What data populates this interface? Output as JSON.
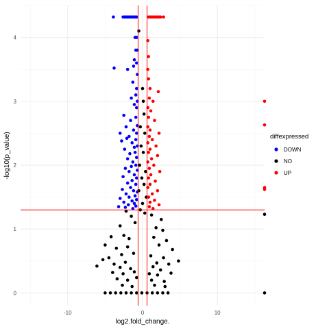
{
  "chart_data": {
    "type": "scatter",
    "title": "",
    "xlabel": "log2.fold_change.",
    "ylabel": "-log10(p_value)",
    "xlim": [
      -16.3,
      16.3
    ],
    "ylim": [
      -0.2,
      4.5
    ],
    "x_ticks": [
      -10,
      0,
      10
    ],
    "y_ticks": [
      0,
      1,
      2,
      3,
      4
    ],
    "grid": true,
    "thresholds": {
      "vlines": [
        -0.6,
        0.6
      ],
      "hline": 1.3,
      "color": "#ff0000"
    },
    "legend": {
      "title": "diffexpressed",
      "position": "right",
      "entries": [
        {
          "label": "DOWN",
          "color": "#0000ff"
        },
        {
          "label": "NO",
          "color": "#000000"
        },
        {
          "label": "UP",
          "color": "#ff0000"
        }
      ]
    },
    "series": [
      {
        "name": "DOWN",
        "color": "#0000ff",
        "points": [
          [
            -3.9,
            4.32
          ],
          [
            -2.6,
            4.32
          ],
          [
            -2.4,
            4.32
          ],
          [
            -2.2,
            4.32
          ],
          [
            -2.0,
            4.32
          ],
          [
            -1.8,
            4.32
          ],
          [
            -1.6,
            4.32
          ],
          [
            -1.4,
            4.32
          ],
          [
            -1.2,
            4.32
          ],
          [
            -1.0,
            4.32
          ],
          [
            -0.8,
            4.32
          ],
          [
            -0.8,
            4.0
          ],
          [
            -1.0,
            4.0
          ],
          [
            -0.7,
            3.8
          ],
          [
            -0.9,
            3.8
          ],
          [
            -1.1,
            3.65
          ],
          [
            -0.8,
            3.6
          ],
          [
            -1.2,
            3.55
          ],
          [
            -3.8,
            3.52
          ],
          [
            -2.0,
            3.5
          ],
          [
            -0.7,
            3.42
          ],
          [
            -1.3,
            3.3
          ],
          [
            -0.8,
            3.2
          ],
          [
            -0.9,
            3.1
          ],
          [
            -1.5,
            3.05
          ],
          [
            -0.7,
            3.0
          ],
          [
            -1.1,
            2.95
          ],
          [
            -0.8,
            2.9
          ],
          [
            -2.5,
            2.78
          ],
          [
            -0.9,
            2.75
          ],
          [
            -1.6,
            2.7
          ],
          [
            -0.7,
            2.62
          ],
          [
            -2.2,
            2.6
          ],
          [
            -1.2,
            2.55
          ],
          [
            -3.0,
            2.5
          ],
          [
            -0.8,
            2.5
          ],
          [
            -1.8,
            2.45
          ],
          [
            -2.1,
            2.42
          ],
          [
            -0.9,
            2.4
          ],
          [
            -2.8,
            2.38
          ],
          [
            -1.4,
            2.35
          ],
          [
            -0.7,
            2.3
          ],
          [
            -1.1,
            2.28
          ],
          [
            -2.4,
            2.25
          ],
          [
            -1.0,
            2.2
          ],
          [
            -1.7,
            2.18
          ],
          [
            -0.8,
            2.12
          ],
          [
            -2.0,
            2.1
          ],
          [
            -1.3,
            2.05
          ],
          [
            -0.9,
            2.0
          ],
          [
            -1.5,
            1.98
          ],
          [
            -2.3,
            1.95
          ],
          [
            -0.7,
            1.92
          ],
          [
            -1.8,
            1.9
          ],
          [
            -1.1,
            1.85
          ],
          [
            -2.6,
            1.82
          ],
          [
            -0.8,
            1.8
          ],
          [
            -1.4,
            1.76
          ],
          [
            -2.0,
            1.72
          ],
          [
            -0.9,
            1.7
          ],
          [
            -1.6,
            1.65
          ],
          [
            -2.7,
            1.62
          ],
          [
            -1.2,
            1.6
          ],
          [
            -0.7,
            1.58
          ],
          [
            -2.2,
            1.55
          ],
          [
            -1.0,
            1.52
          ],
          [
            -1.8,
            1.5
          ],
          [
            -3.0,
            1.48
          ],
          [
            -0.8,
            1.46
          ],
          [
            -1.4,
            1.44
          ],
          [
            -2.5,
            1.42
          ],
          [
            -1.1,
            1.4
          ],
          [
            -1.9,
            1.38
          ],
          [
            -0.9,
            1.36
          ],
          [
            -2.3,
            1.34
          ],
          [
            -1.3,
            1.32
          ],
          [
            -3.2,
            1.35
          ]
        ]
      },
      {
        "name": "NO",
        "color": "#000000",
        "points": [
          [
            -0.5,
            4.1
          ],
          [
            0.0,
            3.2
          ],
          [
            0.1,
            3.0
          ],
          [
            0.2,
            2.8
          ],
          [
            -0.3,
            2.6
          ],
          [
            0.3,
            2.5
          ],
          [
            -0.2,
            2.3
          ],
          [
            0.1,
            2.2
          ],
          [
            -0.4,
            2.0
          ],
          [
            0.4,
            1.9
          ],
          [
            -0.1,
            1.8
          ],
          [
            0.2,
            1.7
          ],
          [
            -0.5,
            1.6
          ],
          [
            0.5,
            1.5
          ],
          [
            0.0,
            1.4
          ],
          [
            -0.3,
            1.3
          ],
          [
            0.3,
            1.25
          ],
          [
            -2.2,
            1.28
          ],
          [
            -1.5,
            1.2
          ],
          [
            1.2,
            1.22
          ],
          [
            2.5,
            1.15
          ],
          [
            -3.0,
            1.05
          ],
          [
            -1.0,
            1.1
          ],
          [
            1.8,
            1.02
          ],
          [
            2.7,
            0.98
          ],
          [
            -2.5,
            0.9
          ],
          [
            -4.2,
            0.88
          ],
          [
            -1.8,
            0.85
          ],
          [
            1.5,
            0.87
          ],
          [
            3.2,
            0.82
          ],
          [
            -5.0,
            0.75
          ],
          [
            -3.5,
            0.7
          ],
          [
            -2.0,
            0.72
          ],
          [
            2.2,
            0.75
          ],
          [
            4.0,
            0.68
          ],
          [
            -4.5,
            0.55
          ],
          [
            -2.8,
            0.6
          ],
          [
            -1.2,
            0.62
          ],
          [
            1.1,
            0.58
          ],
          [
            2.8,
            0.55
          ],
          [
            -5.3,
            0.52
          ],
          [
            -3.8,
            0.45
          ],
          [
            -2.3,
            0.48
          ],
          [
            1.9,
            0.47
          ],
          [
            3.5,
            0.45
          ],
          [
            4.8,
            0.5
          ],
          [
            -6.1,
            0.42
          ],
          [
            -3.0,
            0.4
          ],
          [
            -1.6,
            0.38
          ],
          [
            1.4,
            0.41
          ],
          [
            2.4,
            0.36
          ],
          [
            -4.0,
            0.32
          ],
          [
            -2.6,
            0.3
          ],
          [
            -1.1,
            0.33
          ],
          [
            0.9,
            0.3
          ],
          [
            2.0,
            0.28
          ],
          [
            3.8,
            0.31
          ],
          [
            -3.4,
            0.22
          ],
          [
            -2.0,
            0.2
          ],
          [
            -0.8,
            0.24
          ],
          [
            1.2,
            0.2
          ],
          [
            2.9,
            0.18
          ],
          [
            -2.7,
            0.12
          ],
          [
            -1.4,
            0.1
          ],
          [
            1.6,
            0.12
          ],
          [
            3.0,
            0.1
          ],
          [
            -5.0,
            0.0
          ],
          [
            -4.3,
            0.0
          ],
          [
            -3.6,
            0.0
          ],
          [
            -2.9,
            0.0
          ],
          [
            -2.2,
            0.0
          ],
          [
            -1.5,
            0.0
          ],
          [
            -0.8,
            0.0
          ],
          [
            -0.1,
            0.0
          ],
          [
            0.6,
            0.0
          ],
          [
            1.3,
            0.0
          ],
          [
            2.0,
            0.0
          ],
          [
            2.7,
            0.0
          ],
          [
            3.4,
            0.0
          ],
          [
            16.3,
            1.23
          ],
          [
            16.3,
            0.0
          ]
        ]
      },
      {
        "name": "UP",
        "color": "#ff0000",
        "points": [
          [
            0.8,
            4.32
          ],
          [
            1.0,
            4.32
          ],
          [
            1.2,
            4.32
          ],
          [
            1.4,
            4.32
          ],
          [
            1.6,
            4.32
          ],
          [
            1.8,
            4.32
          ],
          [
            2.0,
            4.32
          ],
          [
            2.2,
            4.32
          ],
          [
            2.4,
            4.32
          ],
          [
            2.8,
            4.32
          ],
          [
            0.7,
            3.95
          ],
          [
            0.8,
            3.7
          ],
          [
            0.7,
            3.5
          ],
          [
            0.8,
            3.35
          ],
          [
            1.0,
            3.2
          ],
          [
            2.1,
            3.15
          ],
          [
            0.9,
            3.05
          ],
          [
            1.4,
            3.0
          ],
          [
            0.7,
            2.9
          ],
          [
            1.1,
            2.85
          ],
          [
            0.8,
            2.75
          ],
          [
            1.6,
            2.7
          ],
          [
            0.7,
            2.6
          ],
          [
            1.0,
            2.55
          ],
          [
            2.2,
            2.5
          ],
          [
            0.9,
            2.45
          ],
          [
            1.3,
            2.4
          ],
          [
            0.7,
            2.35
          ],
          [
            1.8,
            2.3
          ],
          [
            1.0,
            2.25
          ],
          [
            0.8,
            2.2
          ],
          [
            2.0,
            2.15
          ],
          [
            1.2,
            2.1
          ],
          [
            0.7,
            2.05
          ],
          [
            1.5,
            2.0
          ],
          [
            0.9,
            1.95
          ],
          [
            2.3,
            1.9
          ],
          [
            1.1,
            1.85
          ],
          [
            0.8,
            1.8
          ],
          [
            1.7,
            1.75
          ],
          [
            1.0,
            1.7
          ],
          [
            0.7,
            1.65
          ],
          [
            2.0,
            1.6
          ],
          [
            1.3,
            1.55
          ],
          [
            0.8,
            1.5
          ],
          [
            1.6,
            1.45
          ],
          [
            1.0,
            1.42
          ],
          [
            2.2,
            1.38
          ],
          [
            0.9,
            1.35
          ],
          [
            1.4,
            1.32
          ],
          [
            16.3,
            3.0
          ],
          [
            16.3,
            2.63
          ],
          [
            16.3,
            1.65
          ],
          [
            16.3,
            1.62
          ]
        ]
      }
    ]
  }
}
